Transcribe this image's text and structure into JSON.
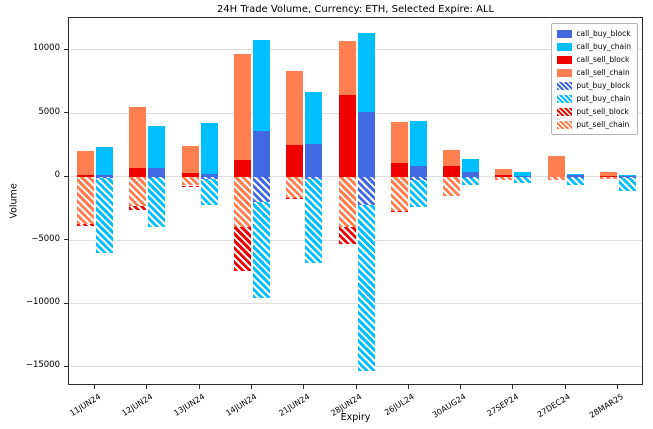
{
  "chart_data": {
    "type": "bar",
    "stacked": true,
    "grouped": true,
    "title": "24H Trade Volume, Currency: ETH, Selected Expire: ALL",
    "xlabel": "Expiry",
    "ylabel": "Volume",
    "categories": [
      "11JUN24",
      "12JUN24",
      "13JUN24",
      "14JUN24",
      "21JUN24",
      "28JUN24",
      "26JUL24",
      "30AUG24",
      "27SEP24",
      "27DEC24",
      "28MAR25"
    ],
    "ylim": [
      -16500,
      12500
    ],
    "yticks": [
      10000,
      5000,
      0,
      -5000,
      -10000,
      -15000
    ],
    "grid": "horizontal",
    "legend_position": "upper right",
    "legend": [
      "call_buy_block",
      "call_buy_chain",
      "call_sell_block",
      "call_sell_chain",
      "put_buy_block",
      "put_buy_chain",
      "put_sell_block",
      "put_sell_chain"
    ],
    "series": [
      {
        "name": "call_sell_block",
        "bar": "sell",
        "color": "#ee0000",
        "hatch": false,
        "values": [
          150,
          700,
          250,
          1300,
          2500,
          6400,
          1100,
          800,
          100,
          0,
          50
        ]
      },
      {
        "name": "call_sell_chain",
        "bar": "sell",
        "color": "#ff7f50",
        "hatch": false,
        "values": [
          1850,
          4800,
          2150,
          8400,
          5800,
          4300,
          3200,
          1300,
          500,
          1600,
          300
        ]
      },
      {
        "name": "put_sell_chain",
        "bar": "sell",
        "color": "#ff7f50",
        "hatch": true,
        "values": [
          -3700,
          -2300,
          -700,
          -4000,
          -1700,
          -4000,
          -2700,
          -1500,
          -300,
          -300,
          -200
        ]
      },
      {
        "name": "put_sell_block",
        "bar": "sell",
        "color": "#ee0000",
        "hatch": true,
        "values": [
          -200,
          -300,
          -100,
          -3400,
          -100,
          -1300,
          -100,
          0,
          0,
          0,
          0
        ]
      },
      {
        "name": "call_buy_block",
        "bar": "buy",
        "color": "#4169e1",
        "hatch": false,
        "values": [
          100,
          700,
          200,
          3600,
          2600,
          5100,
          800,
          400,
          50,
          100,
          50
        ]
      },
      {
        "name": "call_buy_chain",
        "bar": "buy",
        "color": "#00bfff",
        "hatch": false,
        "values": [
          2200,
          3300,
          4000,
          7200,
          4100,
          6200,
          3600,
          1000,
          350,
          100,
          100
        ]
      },
      {
        "name": "put_buy_block",
        "bar": "buy",
        "color": "#4169e1",
        "hatch": true,
        "values": [
          -100,
          -100,
          -200,
          -2000,
          -200,
          -2200,
          -300,
          -100,
          -50,
          -100,
          -100
        ]
      },
      {
        "name": "put_buy_chain",
        "bar": "buy",
        "color": "#00bfff",
        "hatch": true,
        "values": [
          -5900,
          -3900,
          -2000,
          -7600,
          -6600,
          -13100,
          -2100,
          -600,
          -450,
          -600,
          -1000
        ]
      }
    ]
  }
}
